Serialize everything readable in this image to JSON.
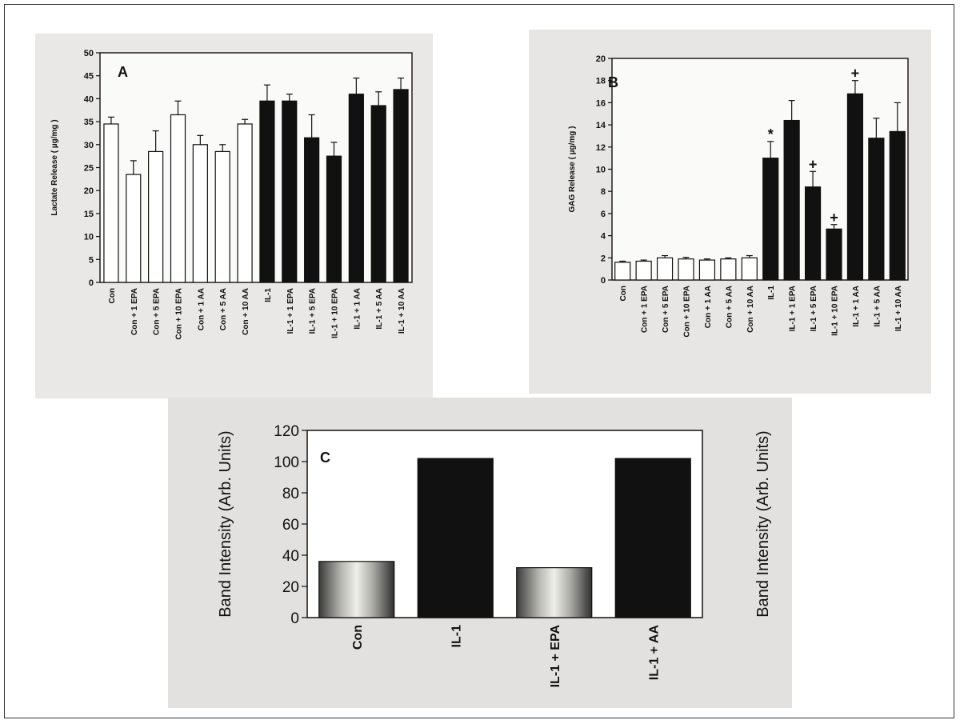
{
  "chart_data": [
    {
      "panel": "A",
      "type": "bar",
      "ylabel": "Lactate Release ( µg/mg )",
      "ylim": [
        0,
        50
      ],
      "yticks": [
        0,
        5,
        10,
        15,
        20,
        25,
        30,
        35,
        40,
        45,
        50
      ],
      "categories": [
        "Con",
        "Con + 1 EPA",
        "Con + 5 EPA",
        "Con + 10 EPA",
        "Con + 1 AA",
        "Con + 5 AA",
        "Con + 10 AA",
        "IL-1",
        "IL-1 + 1 EPA",
        "IL-1 + 5 EPA",
        "IL-1 + 10 EPA",
        "IL-1 + 1 AA",
        "IL-1 + 5 AA",
        "IL-1 + 10 AA"
      ],
      "values": [
        34.5,
        23.5,
        28.5,
        36.5,
        30,
        28.5,
        34.5,
        39.5,
        39.5,
        31.5,
        27.5,
        41,
        38.5,
        42
      ],
      "errors": [
        1.5,
        3,
        4.5,
        3,
        2,
        1.5,
        1,
        3.5,
        1.5,
        5,
        3,
        3.5,
        3,
        2.5
      ],
      "fills": [
        "white",
        "white",
        "white",
        "white",
        "white",
        "white",
        "white",
        "black",
        "black",
        "black",
        "black",
        "black",
        "black",
        "black"
      ],
      "annotations": []
    },
    {
      "panel": "B",
      "type": "bar",
      "ylabel": "GAG Release ( µg/mg )",
      "ylim": [
        0,
        20
      ],
      "yticks": [
        0,
        2,
        4,
        6,
        8,
        10,
        12,
        14,
        16,
        18,
        20
      ],
      "categories": [
        "Con",
        "Con + 1 EPA",
        "Con + 5 EPA",
        "Con + 10 EPA",
        "Con + 1 AA",
        "Con + 5 AA",
        "Con + 10 AA",
        "IL-1",
        "IL-1 + 1 EPA",
        "IL-1 + 5 EPA",
        "IL-1 + 10 EPA",
        "IL-1 + 1 AA",
        "IL-1 + 5 AA",
        "IL-1 + 10 AA"
      ],
      "values": [
        1.6,
        1.7,
        2.0,
        1.9,
        1.8,
        1.9,
        2.0,
        11.0,
        14.4,
        8.4,
        4.6,
        16.8,
        12.8,
        13.4
      ],
      "errors": [
        0.1,
        0.1,
        0.2,
        0.15,
        0.1,
        0.1,
        0.2,
        1.5,
        1.8,
        1.4,
        0.4,
        1.2,
        1.8,
        2.6
      ],
      "fills": [
        "white",
        "white",
        "white",
        "white",
        "white",
        "white",
        "white",
        "black",
        "black",
        "black",
        "black",
        "black",
        "black",
        "black"
      ],
      "annotations": [
        "",
        "",
        "",
        "",
        "",
        "",
        "",
        "*",
        "",
        "+",
        "+",
        "+",
        "",
        ""
      ]
    },
    {
      "panel": "C",
      "type": "bar",
      "ylabel": "Band Intensity (Arb. Units)",
      "ylim": [
        0,
        120
      ],
      "yticks": [
        0,
        20,
        40,
        60,
        80,
        100,
        120
      ],
      "categories": [
        "Con",
        "IL-1",
        "IL-1 + EPA",
        "IL-1 + AA"
      ],
      "values": [
        36,
        102,
        32,
        102
      ],
      "fills": [
        "gradient",
        "black",
        "gradient",
        "black"
      ]
    }
  ]
}
